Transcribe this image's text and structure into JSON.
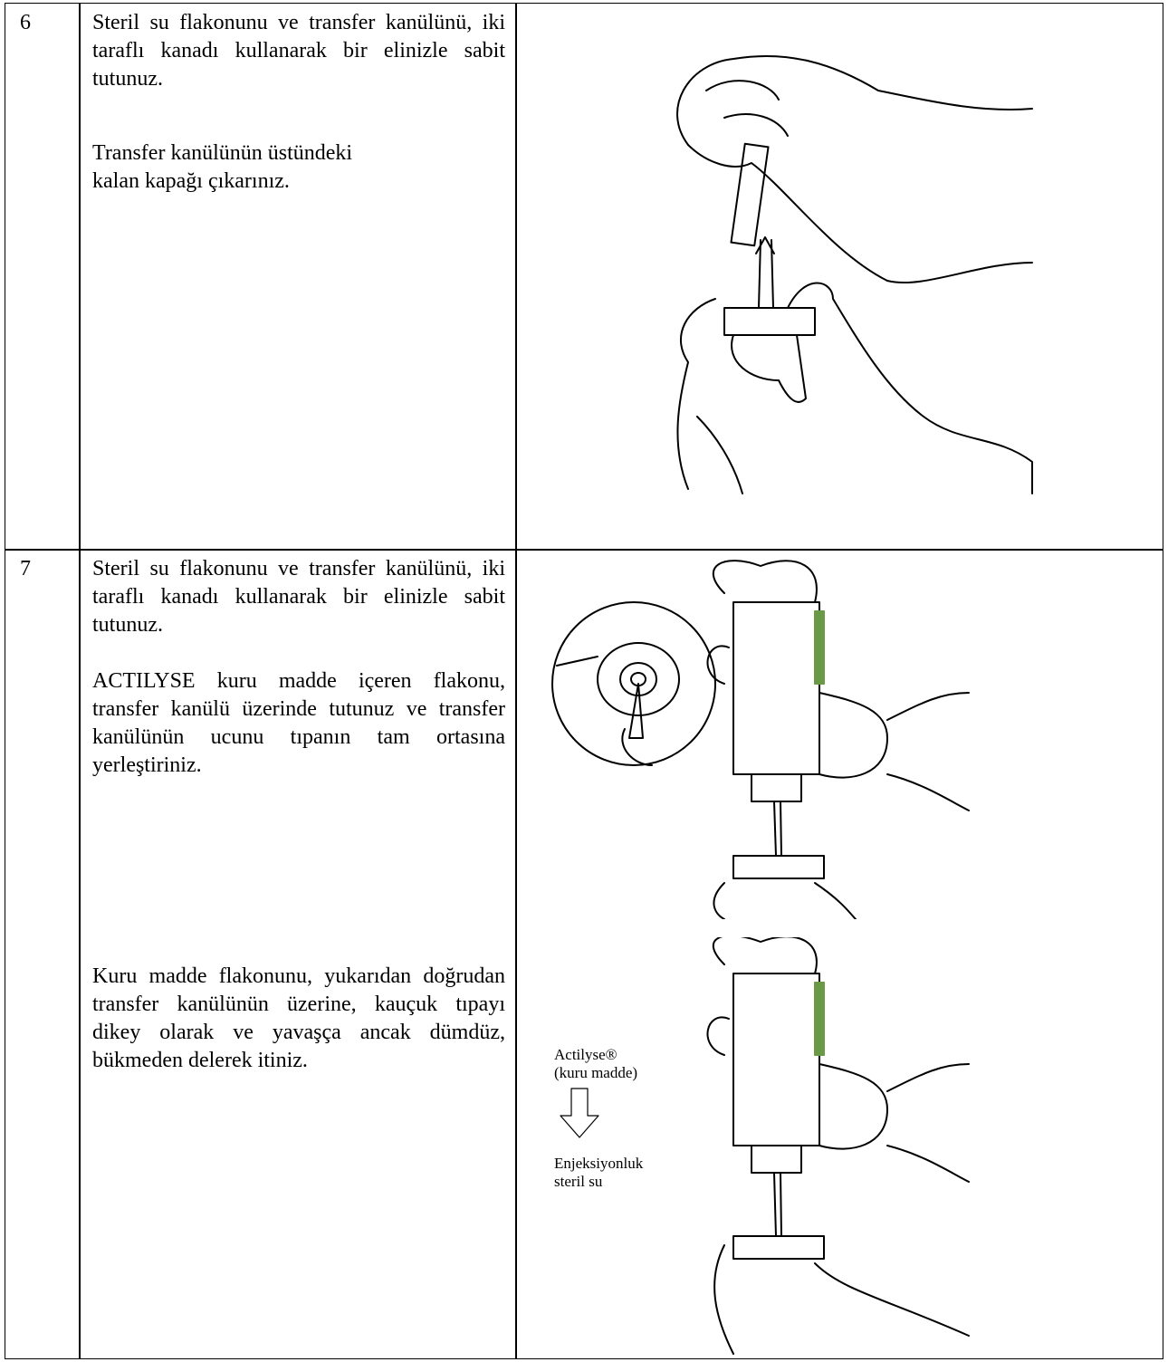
{
  "rows": [
    {
      "step": "6",
      "paragraphs": [
        "Steril su flakonunu ve transfer kanülünü, iki taraflı kanadı kullanarak bir elinizle sabit tutunuz.",
        "Transfer kanülünün üstündeki kalan kapağı çıkarınız."
      ]
    },
    {
      "step": "7",
      "paragraphs": [
        "Steril su flakonunu ve transfer kanülünü, iki taraflı kanadı kullanarak bir elinizle sabit tutunuz.",
        "ACTILYSE kuru madde içeren flakonu, transfer kanülü üzerinde tutunuz ve transfer kanülünün ucunu tıpanın tam ortasına yerleştiriniz.",
        "Kuru madde flakonunu, yukarıdan doğrudan transfer kanülünün üzerine, kauçuk tıpayı dikey olarak ve yavaşça ancak dümdüz, bükmeden delerek itiniz."
      ],
      "figure_labels": [
        "Actilyse®",
        "(kuru madde)",
        "Enjeksiyonluk",
        "steril su"
      ]
    }
  ]
}
